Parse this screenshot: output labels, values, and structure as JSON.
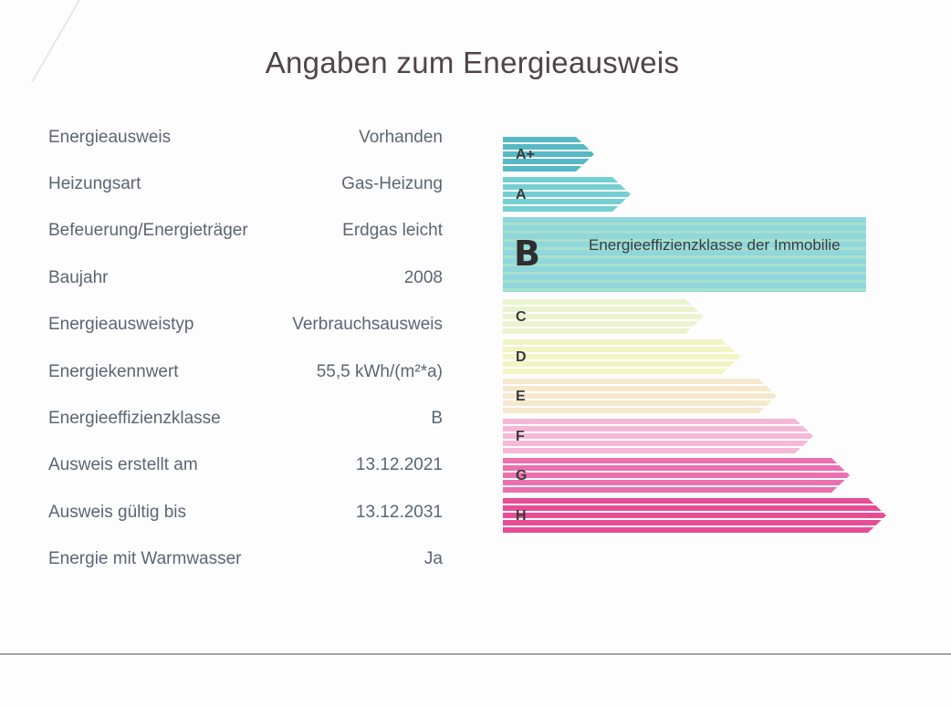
{
  "title": "Angaben zum Energieausweis",
  "details": [
    {
      "label": "Energieausweis",
      "value": "Vorhanden"
    },
    {
      "label": "Heizungsart",
      "value": "Gas-Heizung"
    },
    {
      "label": "Befeuerung/Energieträger",
      "value": "Erdgas leicht"
    },
    {
      "label": "Baujahr",
      "value": "2008"
    },
    {
      "label": "Energieausweistyp",
      "value": "Verbrauchsausweis"
    },
    {
      "label": "Energiekennwert",
      "value": "55,5 kWh/(m²*a)"
    },
    {
      "label": "Energieeffizienzklasse",
      "value": "B"
    },
    {
      "label": "Ausweis erstellt am",
      "value": "13.12.2021"
    },
    {
      "label": "Ausweis gültig bis",
      "value": "13.12.2031"
    },
    {
      "label": "Energie mit Warmwasser",
      "value": "Ja"
    }
  ],
  "scale": {
    "classes": [
      {
        "label": "A+",
        "color": "#58b8c4"
      },
      {
        "label": "A",
        "color": "#74cfd2"
      },
      {
        "label": "B",
        "color": "#8fd6dd"
      },
      {
        "label": "C",
        "color": "#eaf3cf"
      },
      {
        "label": "D",
        "color": "#f2f4c4"
      },
      {
        "label": "E",
        "color": "#f6e8cd"
      },
      {
        "label": "F",
        "color": "#f5b8d7"
      },
      {
        "label": "G",
        "color": "#ec6fae"
      },
      {
        "label": "H",
        "color": "#e84c94"
      }
    ],
    "active_class": "B",
    "active_description": "Energieeffizienzklasse der Immobilie"
  }
}
